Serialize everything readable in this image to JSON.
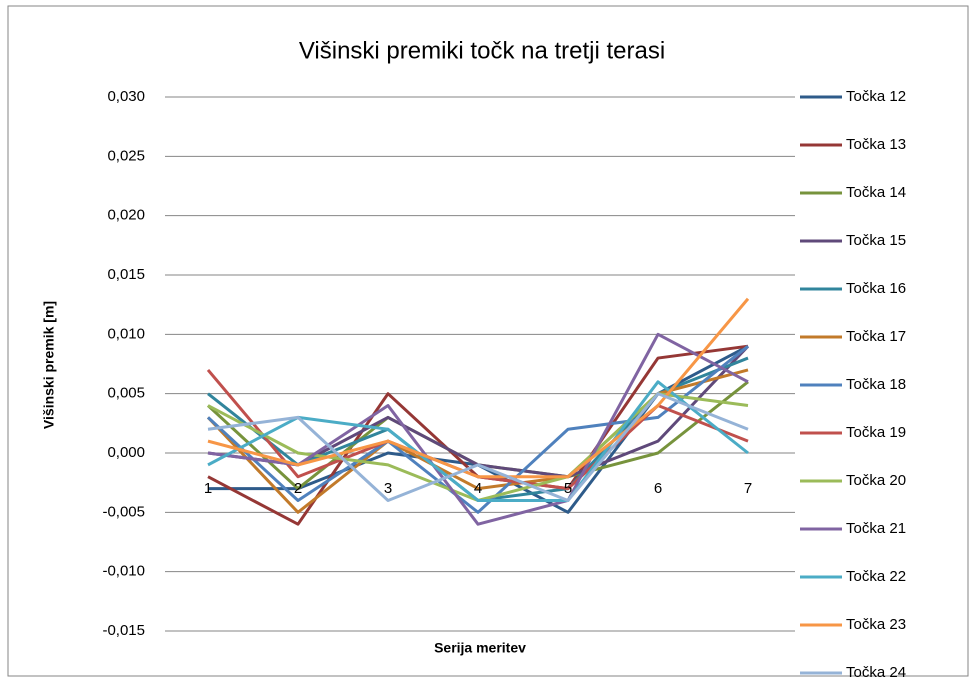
{
  "chart_data": {
    "type": "line",
    "title": "Višinski premiki točk na tretji terasi",
    "y_label": "Višinski premik [m]",
    "x_label": "Serija meritev",
    "categories": [
      "1",
      "2",
      "3",
      "4",
      "5",
      "6",
      "7"
    ],
    "ylim": [
      -0.015,
      0.03
    ],
    "yticks": [
      {
        "value": -0.015,
        "label": "-0,015"
      },
      {
        "value": -0.01,
        "label": "-0,010"
      },
      {
        "value": -0.005,
        "label": "-0,005"
      },
      {
        "value": 0,
        "label": "0,000"
      },
      {
        "value": 0.005,
        "label": "0,005"
      },
      {
        "value": 0.01,
        "label": "0,010"
      },
      {
        "value": 0.015,
        "label": "0,015"
      },
      {
        "value": 0.02,
        "label": "0,020"
      },
      {
        "value": 0.025,
        "label": "0,025"
      },
      {
        "value": 0.03,
        "label": "0,030"
      }
    ],
    "grid": true,
    "legend": "right",
    "series": [
      {
        "name": "Točka 12",
        "color": "#2e5b8a",
        "values": [
          -0.003,
          -0.003,
          0.0,
          -0.001,
          -0.005,
          0.005,
          0.009
        ]
      },
      {
        "name": "Točka 13",
        "color": "#953735",
        "values": [
          -0.002,
          -0.006,
          0.005,
          -0.002,
          -0.003,
          0.008,
          0.009
        ]
      },
      {
        "name": "Točka 14",
        "color": "#77933c",
        "values": [
          0.004,
          -0.003,
          0.003,
          -0.001,
          -0.002,
          0.0,
          0.006
        ]
      },
      {
        "name": "Točka 15",
        "color": "#5f497a",
        "values": [
          0.0,
          -0.001,
          0.003,
          -0.001,
          -0.002,
          0.001,
          0.009
        ]
      },
      {
        "name": "Točka 16",
        "color": "#31859c",
        "values": [
          0.005,
          -0.001,
          0.002,
          -0.004,
          -0.003,
          0.005,
          0.008
        ]
      },
      {
        "name": "Točka 17",
        "color": "#c27a2a",
        "values": [
          0.003,
          -0.005,
          0.001,
          -0.003,
          -0.002,
          0.005,
          0.007
        ]
      },
      {
        "name": "Točka 18",
        "color": "#4f81bd",
        "values": [
          0.003,
          -0.004,
          0.001,
          -0.005,
          0.002,
          0.003,
          0.009
        ]
      },
      {
        "name": "Točka 19",
        "color": "#c0504d",
        "values": [
          0.007,
          -0.002,
          0.001,
          -0.002,
          -0.003,
          0.004,
          0.001
        ]
      },
      {
        "name": "Točka 20",
        "color": "#9bbb59",
        "values": [
          0.004,
          0.0,
          -0.001,
          -0.004,
          -0.002,
          0.005,
          0.004
        ]
      },
      {
        "name": "Točka 21",
        "color": "#8064a2",
        "values": [
          0.0,
          -0.001,
          0.004,
          -0.006,
          -0.004,
          0.01,
          0.006
        ]
      },
      {
        "name": "Točka 22",
        "color": "#4bacc6",
        "values": [
          -0.001,
          0.003,
          0.002,
          -0.004,
          -0.004,
          0.006,
          0.0
        ]
      },
      {
        "name": "Točka 23",
        "color": "#f79646",
        "values": [
          0.001,
          -0.001,
          0.001,
          -0.002,
          -0.002,
          0.004,
          0.013
        ]
      },
      {
        "name": "Točka 24",
        "color": "#95b3d7",
        "values": [
          0.002,
          0.003,
          -0.004,
          -0.001,
          -0.004,
          0.005,
          0.002
        ]
      }
    ]
  }
}
